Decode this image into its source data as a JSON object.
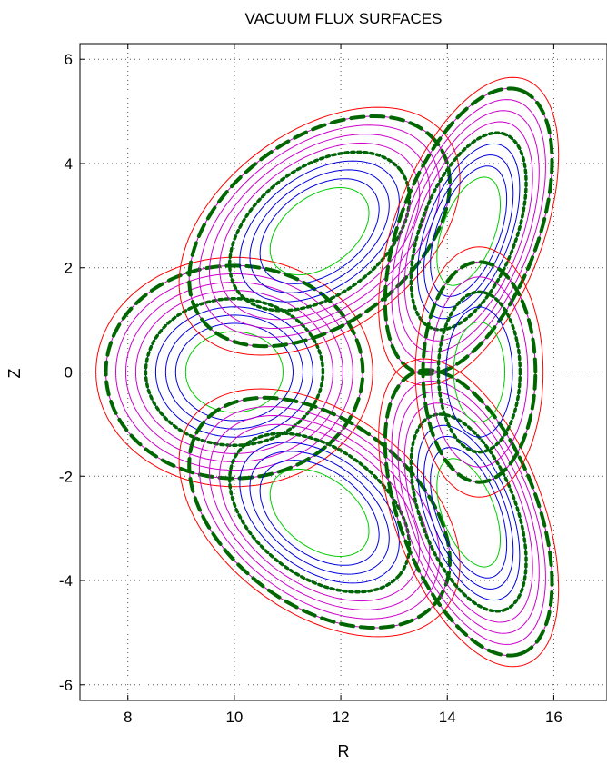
{
  "chart_data": {
    "type": "line",
    "title": "VACUUM FLUX SURFACES",
    "xlabel": "R",
    "ylabel": "Z",
    "xlim": [
      7.1,
      17.0
    ],
    "ylim": [
      -6.3,
      6.3
    ],
    "xticks": [
      8,
      10,
      12,
      14,
      16
    ],
    "yticks": [
      -6,
      -4,
      -2,
      0,
      2,
      4,
      6
    ],
    "grid": "dotted",
    "legend": "none",
    "series": [
      {
        "lobe": "left",
        "center": [
          10.0,
          0.0
        ],
        "rx": 2.6,
        "ry": 2.2,
        "angle_deg": 0,
        "nested_rings": 10
      },
      {
        "lobe": "upper-middle",
        "center": [
          11.6,
          2.7
        ],
        "rx": 3.0,
        "ry": 1.9,
        "angle_deg": 38,
        "nested_rings": 10
      },
      {
        "lobe": "lower-middle",
        "center": [
          11.6,
          -2.7
        ],
        "rx": 3.0,
        "ry": 1.9,
        "angle_deg": -38,
        "nested_rings": 10
      },
      {
        "lobe": "upper-right",
        "center": [
          14.4,
          2.7
        ],
        "rx": 3.1,
        "ry": 1.4,
        "angle_deg": 70,
        "nested_rings": 10
      },
      {
        "lobe": "lower-right",
        "center": [
          14.4,
          -2.7
        ],
        "rx": 3.1,
        "ry": 1.4,
        "angle_deg": -70,
        "nested_rings": 10
      },
      {
        "lobe": "right-inner",
        "center": [
          14.6,
          0.0
        ],
        "rx": 1.2,
        "ry": 2.4,
        "angle_deg": 0,
        "nested_rings": 6
      }
    ],
    "colors": {
      "outer": "#ff0000",
      "magenta": "#cc00cc",
      "blue": "#0000dd",
      "green": "#00cc00",
      "dark_green": "#006600",
      "grid": "#555555"
    }
  }
}
